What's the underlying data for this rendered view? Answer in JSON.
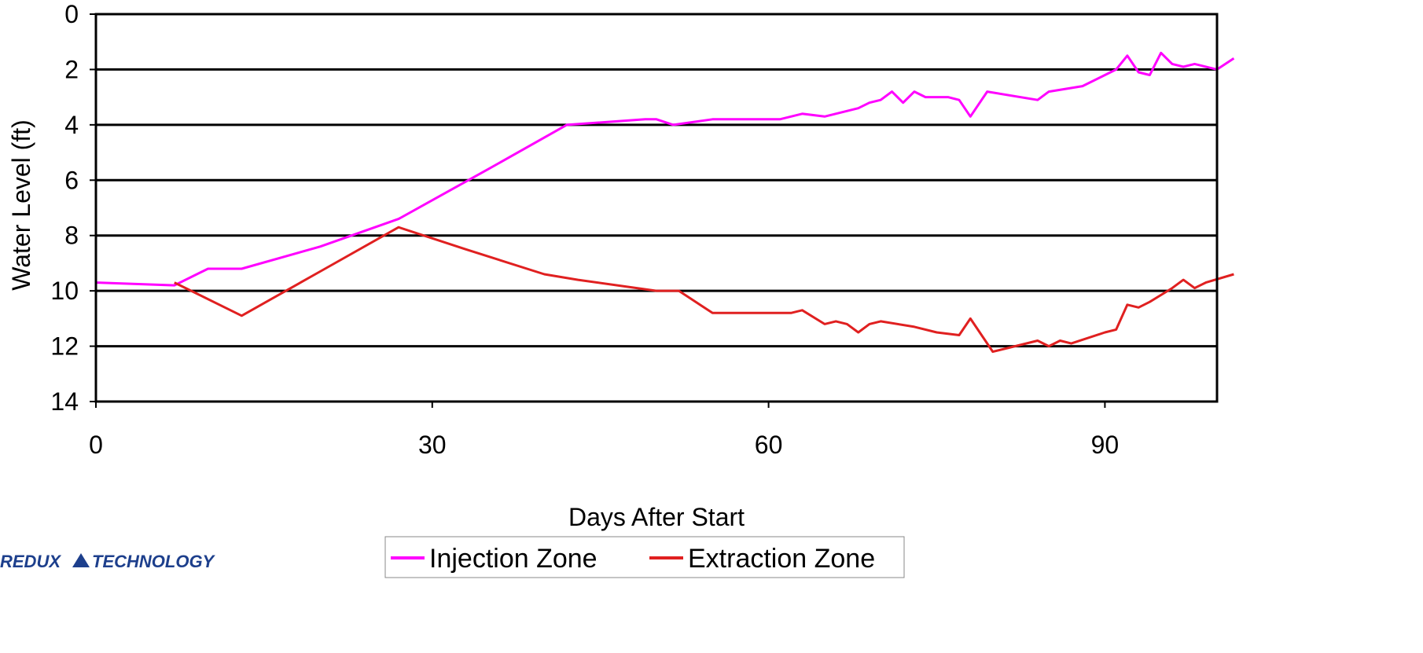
{
  "chart_data": {
    "type": "line",
    "xlabel": "Days After Start",
    "ylabel": "Water Level (ft)",
    "xlim": [
      0,
      100
    ],
    "ylim": [
      0,
      14
    ],
    "y_inverted": true,
    "x_ticks": [
      0,
      30,
      60,
      90
    ],
    "y_ticks": [
      0,
      2,
      4,
      6,
      8,
      10,
      12,
      14
    ],
    "grid": "horizontal",
    "legend_position": "bottom",
    "series": [
      {
        "name": "Injection Zone",
        "color": "#ff00ff",
        "points": [
          [
            0,
            9.7
          ],
          [
            7,
            9.8
          ],
          [
            10,
            9.2
          ],
          [
            13,
            9.2
          ],
          [
            20,
            8.4
          ],
          [
            27,
            7.4
          ],
          [
            35,
            5.6
          ],
          [
            42,
            4.0
          ],
          [
            49,
            3.8
          ],
          [
            50,
            3.8
          ],
          [
            51.5,
            4.0
          ],
          [
            55,
            3.8
          ],
          [
            61,
            3.8
          ],
          [
            63,
            3.6
          ],
          [
            65,
            3.7
          ],
          [
            68,
            3.4
          ],
          [
            69,
            3.2
          ],
          [
            70,
            3.1
          ],
          [
            71,
            2.8
          ],
          [
            72,
            3.2
          ],
          [
            73,
            2.8
          ],
          [
            74,
            3.0
          ],
          [
            76,
            3.0
          ],
          [
            77,
            3.1
          ],
          [
            78,
            3.7
          ],
          [
            79.5,
            2.8
          ],
          [
            84,
            3.1
          ],
          [
            85,
            2.8
          ],
          [
            88,
            2.6
          ],
          [
            91,
            2.0
          ],
          [
            92,
            1.5
          ],
          [
            93,
            2.1
          ],
          [
            94,
            2.2
          ],
          [
            95,
            1.4
          ],
          [
            96,
            1.8
          ],
          [
            97,
            1.9
          ],
          [
            98,
            1.8
          ],
          [
            100,
            2.0
          ],
          [
            101.5,
            1.6
          ]
        ]
      },
      {
        "name": "Extraction Zone",
        "color": "#e02020",
        "points": [
          [
            7,
            9.7
          ],
          [
            13,
            10.9
          ],
          [
            20,
            9.3
          ],
          [
            27,
            7.7
          ],
          [
            33,
            8.5
          ],
          [
            40,
            9.4
          ],
          [
            43,
            9.6
          ],
          [
            50,
            10.0
          ],
          [
            52,
            10.0
          ],
          [
            55,
            10.8
          ],
          [
            62,
            10.8
          ],
          [
            63,
            10.7
          ],
          [
            65,
            11.2
          ],
          [
            66,
            11.1
          ],
          [
            67,
            11.2
          ],
          [
            68,
            11.5
          ],
          [
            69,
            11.2
          ],
          [
            70,
            11.1
          ],
          [
            73,
            11.3
          ],
          [
            75,
            11.5
          ],
          [
            77,
            11.6
          ],
          [
            78,
            11.0
          ],
          [
            80,
            12.2
          ],
          [
            84,
            11.8
          ],
          [
            85,
            12.0
          ],
          [
            86,
            11.8
          ],
          [
            87,
            11.9
          ],
          [
            90,
            11.5
          ],
          [
            91,
            11.4
          ],
          [
            92,
            10.5
          ],
          [
            93,
            10.6
          ],
          [
            94,
            10.4
          ],
          [
            96,
            9.9
          ],
          [
            97,
            9.6
          ],
          [
            98,
            9.9
          ],
          [
            99,
            9.7
          ],
          [
            101.5,
            9.4
          ]
        ]
      }
    ]
  },
  "logo": {
    "text_left": "REDUX",
    "text_right": "TECHNOLOGY"
  }
}
